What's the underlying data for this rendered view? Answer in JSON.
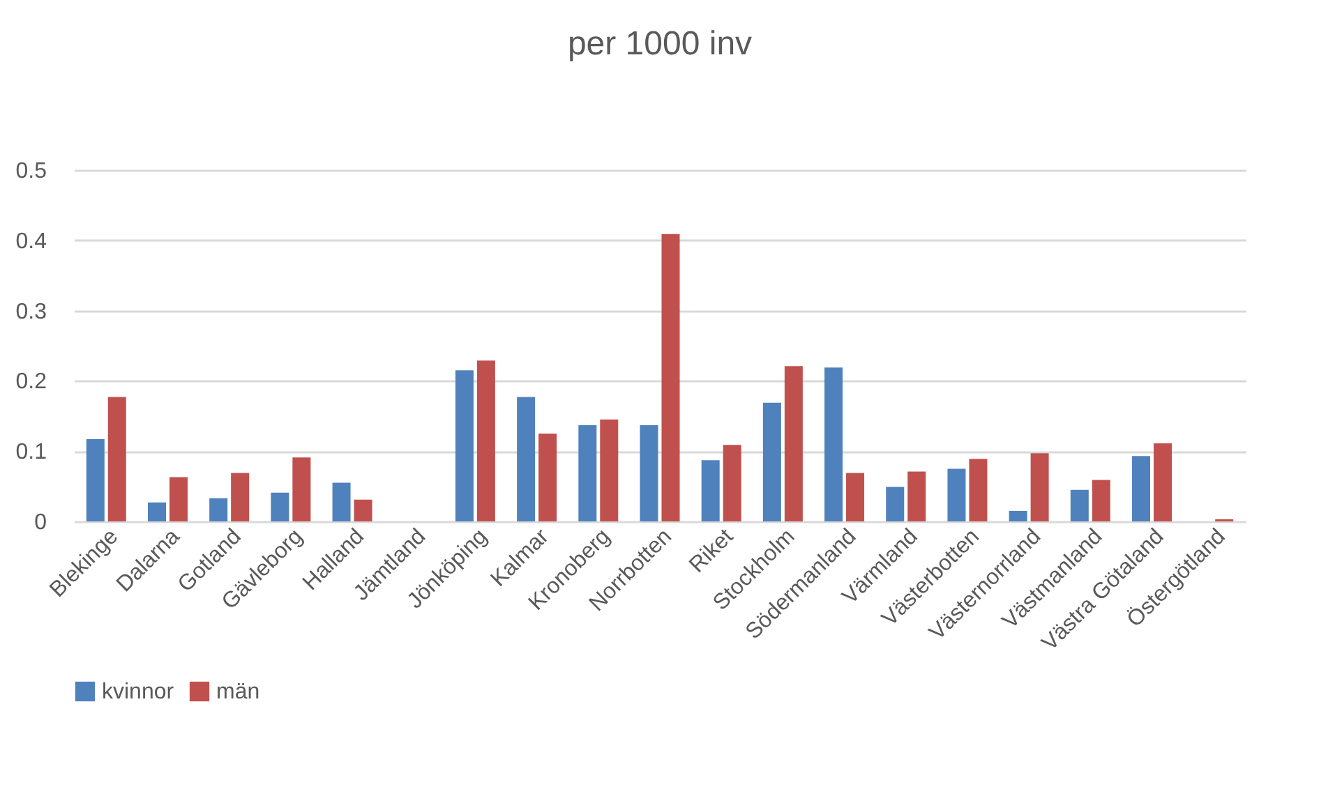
{
  "chart_data": {
    "type": "bar",
    "title": "per 1000 inv",
    "categories": [
      "Blekinge",
      "Dalarna",
      "Gotland",
      "Gävleborg",
      "Halland",
      "Jämtland",
      "Jönköping",
      "Kalmar",
      "Kronoberg",
      "Norrbotten",
      "Riket",
      "Stockholm",
      "Södermanland",
      "Värmland",
      "Västerbotten",
      "Västernorrland",
      "Västmanland",
      "Västra Götaland",
      "Östergötland"
    ],
    "series": [
      {
        "name": "kvinnor",
        "color": "#4f81bd",
        "values": [
          0.117,
          0.027,
          0.033,
          0.041,
          0.055,
          null,
          0.215,
          0.177,
          0.137,
          0.137,
          0.087,
          0.169,
          0.219,
          0.049,
          0.075,
          0.015,
          0.045,
          0.093,
          null
        ]
      },
      {
        "name": "män",
        "color": "#c0504d",
        "values": [
          0.177,
          0.063,
          0.069,
          0.091,
          0.031,
          null,
          0.229,
          0.125,
          0.145,
          0.409,
          0.109,
          0.221,
          0.069,
          0.071,
          0.089,
          0.097,
          0.059,
          0.111,
          0.003
        ]
      }
    ],
    "ylim": [
      0,
      0.5
    ],
    "yticks": [
      0,
      0.1,
      0.2,
      0.3,
      0.4,
      0.5
    ],
    "grid": "y",
    "legend": "bottom"
  }
}
